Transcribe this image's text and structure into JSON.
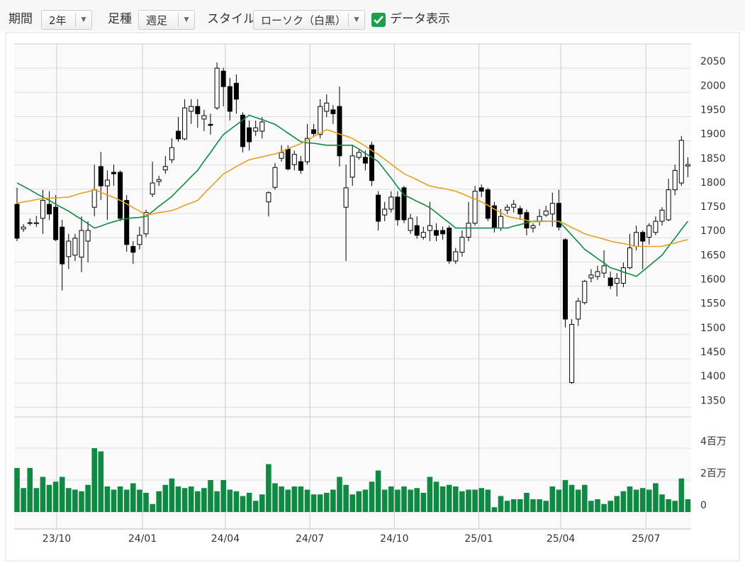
{
  "toolbar": {
    "period_label": "期間",
    "period_value": "2年",
    "interval_label": "足種",
    "interval_value": "週足",
    "style_label": "スタイル",
    "style_value": "ローソク（白黒）",
    "data_label": "データ表示"
  },
  "chart_data": {
    "type": "candlestick",
    "x_labels": [
      {
        "value": 6.15,
        "label": "23/10"
      },
      {
        "value": 19.45,
        "label": "24/01"
      },
      {
        "value": 32.3,
        "label": "24/04"
      },
      {
        "value": 45.4,
        "label": "24/07"
      },
      {
        "value": 58.5,
        "label": "24/10"
      },
      {
        "value": 71.6,
        "label": "25/01"
      },
      {
        "value": 84.3,
        "label": "25/04"
      },
      {
        "value": 97.5,
        "label": "25/07"
      }
    ],
    "ylim": [
      1330,
      2100
    ],
    "yticks": [
      1350,
      1400,
      1450,
      1500,
      1550,
      1600,
      1650,
      1700,
      1750,
      1800,
      1850,
      1900,
      1950,
      2000,
      2050
    ],
    "volume_ylim": [
      0,
      6
    ],
    "volume_ticks": [
      0,
      {
        "value": 2,
        "label": "2百万"
      },
      {
        "value": 4,
        "label": "4百万"
      }
    ],
    "volume_color": "#0f8a42",
    "open": [
      1769,
      1718,
      1730,
      1729,
      1740,
      1769,
      1763,
      1722,
      1661,
      1664,
      1660,
      1693,
      1763,
      1847,
      1807,
      1835,
      1835,
      1777,
      1682,
      1686,
      1708,
      1790,
      1816,
      1840,
      1861,
      1920,
      1904,
      1961,
      1971,
      1945,
      1934,
      1968,
      2044,
      2012,
      2019,
      1953,
      1927,
      1920,
      1920,
      1774,
      1804,
      1864,
      1883,
      1851,
      1857,
      1857,
      1923,
      1913,
      1961,
      1964,
      1971,
      1763,
      1825,
      1866,
      1866,
      1891,
      1788,
      1747,
      1759,
      1784,
      1803,
      1715,
      1725,
      1701,
      1715,
      1715,
      1715,
      1720,
      1652,
      1670,
      1701,
      1730,
      1803,
      1799,
      1766,
      1720,
      1757,
      1763,
      1760,
      1752,
      1720,
      1734,
      1747,
      1749,
      1771,
      1696,
      1401,
      1532,
      1566,
      1617,
      1620,
      1627,
      1617,
      1606,
      1606,
      1638,
      1682,
      1711,
      1701,
      1711,
      1734,
      1737,
      1799,
      1813,
      1848
    ],
    "high": [
      1803,
      1728,
      1740,
      1745,
      1799,
      1796,
      1788,
      1737,
      1708,
      1708,
      1744,
      1734,
      1851,
      1877,
      1839,
      1851,
      1839,
      1788,
      1693,
      1723,
      1758,
      1857,
      1828,
      1869,
      1905,
      1949,
      1986,
      1986,
      1986,
      1964,
      1956,
      2062,
      2051,
      2030,
      2037,
      1959,
      1942,
      1942,
      1949,
      1796,
      1854,
      1891,
      1891,
      1880,
      1869,
      1935,
      1935,
      1986,
      1996,
      1974,
      2012,
      1851,
      1891,
      1883,
      1880,
      1898,
      1796,
      1774,
      1796,
      1796,
      1807,
      1749,
      1744,
      1723,
      1774,
      1730,
      1723,
      1725,
      1679,
      1715,
      1774,
      1807,
      1810,
      1803,
      1774,
      1759,
      1769,
      1778,
      1766,
      1758,
      1730,
      1759,
      1766,
      1793,
      1799,
      1699,
      1532,
      1576,
      1613,
      1635,
      1642,
      1674,
      1630,
      1627,
      1649,
      1708,
      1725,
      1715,
      1730,
      1744,
      1763,
      1822,
      1851,
      1910,
      1866
    ],
    "low": [
      1693,
      1712,
      1725,
      1722,
      1708,
      1737,
      1693,
      1591,
      1635,
      1652,
      1629,
      1649,
      1744,
      1778,
      1737,
      1807,
      1734,
      1671,
      1646,
      1676,
      1701,
      1784,
      1807,
      1832,
      1854,
      1898,
      1901,
      1935,
      1927,
      1920,
      1913,
      1964,
      1971,
      1942,
      1956,
      1876,
      1880,
      1910,
      1905,
      1744,
      1799,
      1857,
      1839,
      1839,
      1832,
      1851,
      1908,
      1905,
      1949,
      1935,
      1847,
      1652,
      1807,
      1861,
      1839,
      1807,
      1715,
      1734,
      1752,
      1725,
      1730,
      1708,
      1698,
      1696,
      1693,
      1693,
      1696,
      1646,
      1646,
      1661,
      1693,
      1725,
      1784,
      1734,
      1711,
      1714,
      1749,
      1752,
      1737,
      1705,
      1711,
      1725,
      1743,
      1723,
      1715,
      1515,
      1398,
      1518,
      1562,
      1608,
      1613,
      1617,
      1594,
      1579,
      1598,
      1635,
      1674,
      1635,
      1686,
      1705,
      1725,
      1734,
      1788,
      1807,
      1825
    ],
    "close": [
      1699,
      1722,
      1731,
      1731,
      1777,
      1749,
      1696,
      1646,
      1693,
      1699,
      1715,
      1715,
      1799,
      1807,
      1819,
      1832,
      1740,
      1686,
      1670,
      1705,
      1752,
      1813,
      1820,
      1847,
      1886,
      1904,
      1968,
      1971,
      1956,
      1952,
      1932,
      2050,
      2012,
      1961,
      1986,
      1888,
      1898,
      1927,
      1939,
      1793,
      1845,
      1876,
      1842,
      1872,
      1839,
      1905,
      1915,
      1971,
      1978,
      1956,
      1869,
      1803,
      1869,
      1876,
      1854,
      1818,
      1734,
      1759,
      1784,
      1737,
      1737,
      1740,
      1705,
      1711,
      1725,
      1705,
      1708,
      1652,
      1671,
      1701,
      1730,
      1796,
      1796,
      1740,
      1720,
      1744,
      1763,
      1769,
      1749,
      1720,
      1725,
      1744,
      1755,
      1771,
      1722,
      1532,
      1521,
      1569,
      1610,
      1623,
      1630,
      1642,
      1601,
      1616,
      1638,
      1679,
      1711,
      1693,
      1725,
      1734,
      1757,
      1799,
      1839,
      1901,
      1851
    ],
    "volume": [
      2.76,
      1.5,
      2.76,
      1.5,
      2.2,
      1.7,
      1.9,
      2.2,
      1.5,
      1.4,
      1.3,
      1.7,
      4.0,
      3.8,
      1.6,
      1.4,
      1.6,
      1.4,
      1.8,
      1.4,
      1.2,
      0.5,
      1.3,
      1.7,
      2.1,
      1.6,
      1.5,
      1.6,
      1.3,
      1.5,
      2.0,
      1.3,
      2.0,
      1.4,
      1.3,
      1.0,
      1.2,
      0.7,
      1.1,
      3.0,
      1.8,
      1.6,
      1.4,
      1.6,
      1.6,
      1.4,
      1.1,
      1.1,
      1.2,
      1.4,
      2.2,
      1.7,
      1.1,
      1.3,
      1.4,
      1.9,
      2.6,
      1.4,
      1.6,
      1.4,
      1.6,
      1.4,
      1.5,
      1.2,
      2.2,
      1.9,
      1.6,
      1.7,
      1.6,
      1.3,
      1.4,
      1.4,
      1.5,
      1.4,
      0.3,
      1.0,
      0.7,
      0.8,
      0.8,
      1.2,
      0.8,
      0.8,
      0.7,
      1.6,
      1.4,
      2.0,
      1.7,
      1.4,
      1.7,
      0.7,
      0.8,
      0.5,
      0.7,
      1.0,
      1.3,
      1.6,
      1.4,
      1.5,
      1.4,
      1.8,
      1.1,
      0.8,
      0.7,
      2.1,
      0.8
    ],
    "moving_averages": [
      {
        "color": "#0f8a42",
        "values": [
          1813,
          1806,
          1799,
          1791,
          1784,
          1777,
          1769,
          1762,
          1755,
          1746,
          1738,
          1729,
          1720,
          1724,
          1729,
          1733,
          1737,
          1739,
          1741,
          1742,
          1744,
          1754,
          1765,
          1775,
          1785,
          1799,
          1812,
          1826,
          1839,
          1858,
          1876,
          1895,
          1913,
          1923,
          1933,
          1943,
          1953,
          1948,
          1944,
          1939,
          1934,
          1925,
          1916,
          1907,
          1898,
          1896,
          1895,
          1893,
          1891,
          1891,
          1891,
          1891,
          1891,
          1883,
          1874,
          1866,
          1857,
          1840,
          1823,
          1805,
          1788,
          1782,
          1775,
          1769,
          1762,
          1752,
          1741,
          1731,
          1720,
          1720,
          1720,
          1720,
          1720,
          1720,
          1720,
          1720,
          1720,
          1724,
          1727,
          1731,
          1734,
          1734,
          1734,
          1734,
          1734,
          1720,
          1705,
          1691,
          1676,
          1667,
          1657,
          1648,
          1638,
          1634,
          1629,
          1625,
          1620,
          1631,
          1642,
          1653,
          1664,
          1682,
          1699,
          1717,
          1734
        ]
      },
      {
        "color": "#e8a020",
        "values": [
          1771,
          1774,
          1776,
          1779,
          1781,
          1782,
          1782,
          1783,
          1784,
          1788,
          1792,
          1795,
          1799,
          1794,
          1788,
          1783,
          1777,
          1770,
          1762,
          1755,
          1747,
          1749,
          1752,
          1754,
          1756,
          1761,
          1767,
          1772,
          1777,
          1791,
          1805,
          1818,
          1832,
          1839,
          1847,
          1854,
          1861,
          1864,
          1867,
          1870,
          1873,
          1878,
          1884,
          1889,
          1894,
          1901,
          1909,
          1916,
          1923,
          1919,
          1914,
          1910,
          1905,
          1897,
          1889,
          1880,
          1872,
          1862,
          1852,
          1842,
          1832,
          1826,
          1820,
          1813,
          1807,
          1804,
          1802,
          1799,
          1796,
          1791,
          1785,
          1780,
          1774,
          1767,
          1759,
          1752,
          1744,
          1741,
          1739,
          1736,
          1733,
          1733,
          1734,
          1734,
          1734,
          1728,
          1721,
          1715,
          1708,
          1704,
          1701,
          1697,
          1693,
          1690,
          1688,
          1685,
          1682,
          1682,
          1682,
          1682,
          1682,
          1686,
          1689,
          1693,
          1696
        ]
      }
    ]
  }
}
